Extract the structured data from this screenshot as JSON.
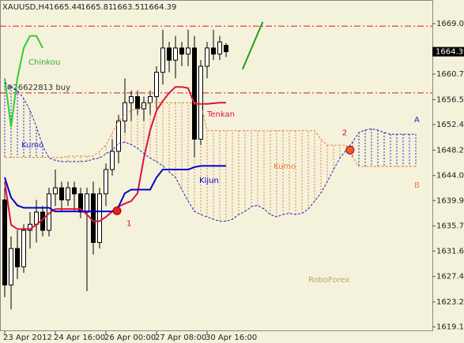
{
  "chart_data": {
    "type": "candlestick",
    "symbol": "XAUUSD,H4",
    "ylim": [
      1618.4,
      1672.9
    ],
    "yticks": [
      {
        "value": 1669.0,
        "label": "1669.00"
      },
      {
        "value": 1660.7,
        "label": "1660.70"
      },
      {
        "value": 1656.5,
        "label": "1656.50"
      },
      {
        "value": 1652.4,
        "label": "1652.40"
      },
      {
        "value": 1648.2,
        "label": "1648.20"
      },
      {
        "value": 1644.0,
        "label": "1644.00"
      },
      {
        "value": 1639.9,
        "label": "1639.90"
      },
      {
        "value": 1635.7,
        "label": "1635.70"
      },
      {
        "value": 1631.6,
        "label": "1631.60"
      },
      {
        "value": 1627.4,
        "label": "1627.40"
      },
      {
        "value": 1623.2,
        "label": "1623.20"
      },
      {
        "value": 1619.1,
        "label": "1619.10"
      }
    ],
    "xticks": [
      {
        "value": 0,
        "label": "23 Apr 2012"
      },
      {
        "value": 8,
        "label": "24 Apr 16:00"
      },
      {
        "value": 16,
        "label": "26 Apr 00:00"
      },
      {
        "value": 24,
        "label": "27 Apr 08:00"
      },
      {
        "value": 32,
        "label": "30 Apr 16:00"
      }
    ],
    "open": [
      1640,
      1626,
      1632,
      1629,
      1635,
      1636,
      1638,
      1635,
      1641,
      1642,
      1640,
      1642,
      1641,
      1638,
      1641,
      1633,
      1641,
      1645,
      1648,
      1653,
      1656,
      1657,
      1655,
      1656,
      1657,
      1661,
      1665,
      1663,
      1665,
      1664,
      1665,
      1650,
      1662,
      1665,
      1664,
      1665.44
    ],
    "high": [
      1642,
      1634,
      1635,
      1636,
      1638,
      1640,
      1639,
      1642,
      1645,
      1643,
      1643,
      1643,
      1642,
      1642,
      1643,
      1642,
      1646,
      1650,
      1654,
      1660,
      1658,
      1658,
      1657,
      1658,
      1662,
      1668,
      1666,
      1667,
      1666,
      1668,
      1667,
      1663,
      1666,
      1668,
      1667,
      1665.81
    ],
    "low": [
      1624,
      1622,
      1627,
      1628,
      1632,
      1633,
      1634,
      1634,
      1639,
      1638,
      1639,
      1638,
      1637,
      1625,
      1631,
      1632,
      1639,
      1644,
      1646,
      1651,
      1653,
      1654,
      1653,
      1654,
      1655,
      1659,
      1661,
      1660,
      1662,
      1662,
      1647,
      1649,
      1660,
      1663,
      1663,
      1663.51
    ],
    "close": [
      1626,
      1632,
      1629,
      1635,
      1636,
      1638,
      1635,
      1641,
      1642,
      1640,
      1642,
      1641,
      1638,
      1641,
      1633,
      1641,
      1645,
      1648,
      1653,
      1656,
      1657,
      1655,
      1656,
      1657,
      1661,
      1665,
      1663,
      1665,
      1664,
      1665,
      1650,
      1662,
      1665,
      1664,
      1666,
      1664.39
    ],
    "series": [
      {
        "name": "Tenkan",
        "color": "#dc143c",
        "values": [
          1643.0,
          1635.9,
          1635.2,
          1635.2,
          1635.2,
          1635.9,
          1636.8,
          1637.8,
          1638.5,
          1638.5,
          1638.5,
          1638.5,
          1638.5,
          1637.6,
          1636.5,
          1636.5,
          1637.2,
          1638.1,
          1638.9,
          1639.4,
          1639.8,
          1641.1,
          1646.9,
          1651.5,
          1654.7,
          1656.3,
          1657.6,
          1658.6,
          1658.6,
          1658.4,
          1655.8,
          1655.8,
          1655.8,
          1655.9,
          1656.0,
          1656.0
        ]
      },
      {
        "name": "Kijun",
        "color": "#0000cd",
        "values": [
          1643.7,
          1640.4,
          1639.1,
          1638.7,
          1638.7,
          1638.7,
          1638.7,
          1638.7,
          1638.1,
          1638.1,
          1638.1,
          1638.1,
          1638.1,
          1638.1,
          1638.1,
          1638.1,
          1638.1,
          1638.1,
          1638.9,
          1641.1,
          1641.7,
          1641.7,
          1641.7,
          1641.7,
          1643.7,
          1645.0,
          1645.0,
          1645.0,
          1645.0,
          1645.0,
          1645.4,
          1645.6,
          1645.6,
          1645.6,
          1645.6,
          1645.6
        ]
      },
      {
        "name": "Chinkou",
        "color": "#32cd32",
        "values": [
          1660,
          1652,
          1660,
          1665,
          1667,
          1667,
          1665,
          null,
          null,
          null,
          null,
          null,
          null,
          null,
          null,
          null,
          null,
          null,
          null,
          null,
          null,
          null,
          null,
          null,
          null,
          null,
          null,
          null,
          null,
          null,
          null,
          null,
          null,
          null,
          null,
          null
        ]
      },
      {
        "name": "A",
        "color": "#2424c8",
        "values": [
          1659.3,
          1658.6,
          1658.0,
          1656.7,
          1654.7,
          1652.1,
          1648.9,
          1646.9,
          1646.5,
          1646.3,
          1646.3,
          1646.3,
          1646.3,
          1646.4,
          1646.7,
          1646.9,
          1647.6,
          1648.2,
          1649.3,
          1649.5,
          1649.1,
          1648.5,
          1647.6,
          1646.9,
          1646.3,
          1645.6,
          1644.6,
          1643.7,
          1641.7,
          1639.8,
          1638.1,
          1637.6,
          1637.2,
          1636.8,
          1636.5,
          1636.5,
          1636.8,
          1637.6,
          1638.1,
          1638.9,
          1639.1,
          1638.5,
          1637.6,
          1637.2,
          1637.6,
          1637.8,
          1637.6,
          1637.8,
          1638.5,
          1639.8,
          1641.1,
          1643.0,
          1645.0,
          1646.9,
          1648.2,
          1649.5,
          1651.1,
          1651.5,
          1651.7,
          1651.5,
          1651.1,
          1650.8,
          1650.8,
          1650.8,
          1650.8,
          1650.8
        ]
      },
      {
        "name": "B",
        "color": "#e8803a",
        "values": [
          1647.0,
          1647.0,
          1647.0,
          1647.0,
          1647.0,
          1647.0,
          1647.0,
          1647.0,
          1647.0,
          1647.0,
          1647.2,
          1647.2,
          1647.2,
          1647.2,
          1647.2,
          1648,
          1649,
          1651,
          1653,
          1654,
          1654.7,
          1655,
          1655.5,
          1656,
          1656,
          1656,
          1656,
          1656,
          1656,
          1656,
          1656,
          1656,
          1651.4,
          1651.4,
          1651.4,
          1651.4,
          1651.4,
          1651.4,
          1651.4,
          1651.4,
          1651.4,
          1651.4,
          1651.4,
          1651.4,
          1651.4,
          1651.4,
          1651.4,
          1651.4,
          1651.4,
          1651.4,
          1650,
          1649,
          1649,
          1649,
          1649,
          1647,
          1645.5,
          1645.5,
          1645.5,
          1645.5,
          1645.5,
          1645.5,
          1645.5,
          1645.5,
          1645.5,
          1645.5
        ]
      }
    ],
    "kumo_labels": [
      "Kumo",
      "Kumo"
    ],
    "hlines": [
      1668.6,
      1657.6
    ],
    "order_label": "#26622813 buy",
    "trendline": {
      "x": [
        37.6,
        40.8
      ],
      "values": [
        1661.5,
        1669.3
      ],
      "color": "#1e9e1e"
    },
    "signals": [
      {
        "label": "1",
        "x": 17.75,
        "y": 1638.2
      },
      {
        "label": "2",
        "x": 54.6,
        "y": 1648.2
      }
    ],
    "watermark": "RoboForex"
  }
}
